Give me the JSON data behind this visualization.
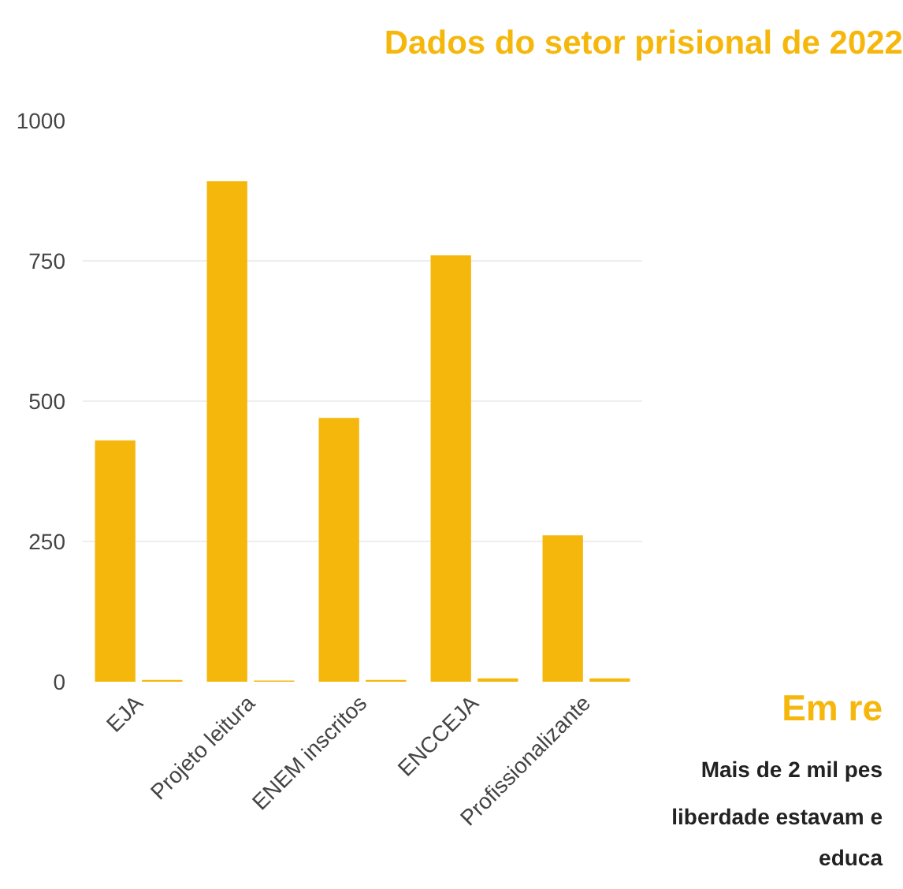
{
  "chart_data": {
    "type": "bar",
    "title": "Dados do setor prisional de 2022",
    "categories": [
      "EJA",
      "Projeto leitura",
      "ENEM inscritos",
      "ENCCEJA",
      "Profissionalizante"
    ],
    "series": [
      {
        "color": "#f5b70c",
        "values": [
          430,
          892,
          470,
          760,
          261
        ]
      },
      {
        "color": "#f5b70c",
        "values": [
          3,
          2,
          3,
          6,
          6
        ]
      }
    ],
    "ylim": [
      0,
      1000
    ],
    "yticks": [
      0,
      250,
      500,
      750,
      1000
    ],
    "grid": "y",
    "annotations": [
      "Em re",
      "Mais de 2 mil pes",
      "liberdade estavam e",
      "educa"
    ]
  }
}
